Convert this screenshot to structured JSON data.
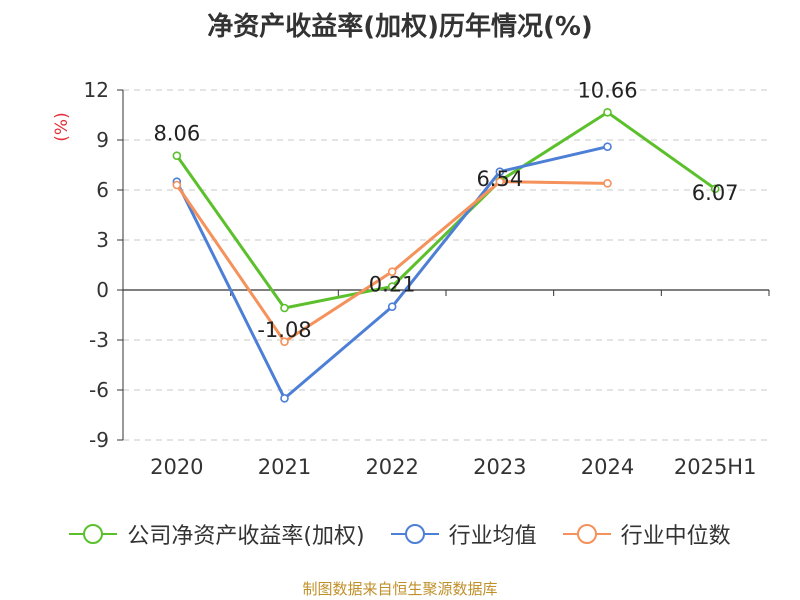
{
  "chart_data": {
    "type": "line",
    "title": "净资产收益率(加权)历年情况(%)",
    "ylabel": "(%)",
    "categories": [
      "2020",
      "2021",
      "2022",
      "2023",
      "2024",
      "2025H1"
    ],
    "ylim": [
      -9,
      12
    ],
    "yticks": [
      "12",
      "9",
      "6",
      "3",
      "0",
      "-3",
      "-6",
      "-9"
    ],
    "grid": true,
    "legend_position": "bottom",
    "series": [
      {
        "name": "公司净资产收益率(加权)",
        "color": "#5cc02c",
        "values": [
          8.06,
          -1.08,
          0.21,
          6.54,
          10.66,
          6.07
        ],
        "labels": [
          "8.06",
          "-1.08",
          "0.21",
          "6.54",
          "10.66",
          "6.07"
        ]
      },
      {
        "name": "行业均值",
        "color": "#4d7fd6",
        "values": [
          6.5,
          -6.5,
          -1.0,
          7.1,
          8.6,
          null
        ]
      },
      {
        "name": "行业中位数",
        "color": "#f5915a",
        "values": [
          6.3,
          -3.1,
          1.1,
          6.5,
          6.4,
          null
        ]
      }
    ]
  },
  "source": "制图数据来自恒生聚源数据库"
}
